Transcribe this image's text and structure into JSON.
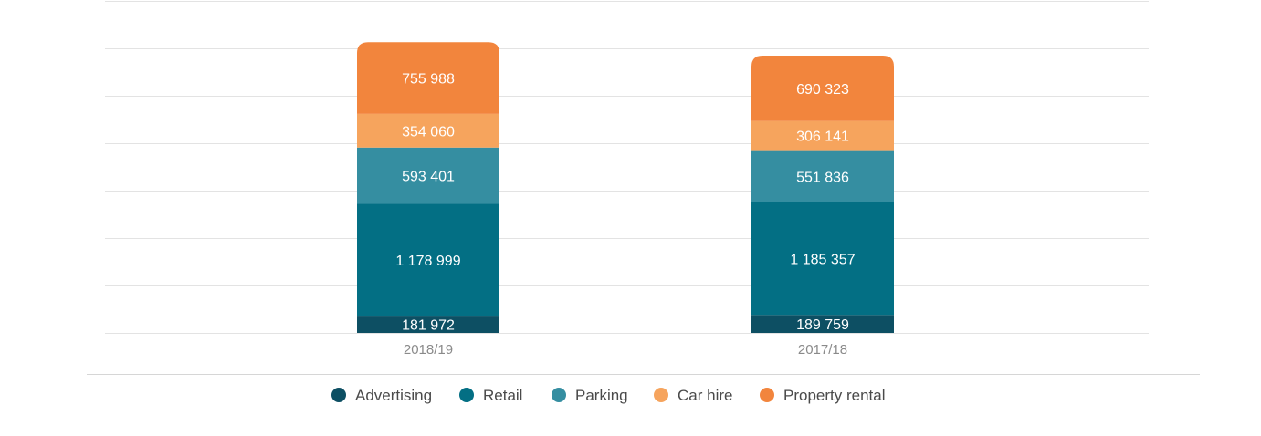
{
  "chart_data": {
    "type": "bar",
    "stacked": true,
    "title": "",
    "xlabel": "",
    "ylabel": "",
    "categories": [
      "2018/19",
      "2017/18"
    ],
    "ylim": [
      0,
      3500000
    ],
    "grid": true,
    "legend_position": "bottom",
    "series": [
      {
        "name": "Advertising",
        "color": "#0d4f63",
        "values": [
          181972,
          189759
        ],
        "labels": [
          "181 972",
          "189 759"
        ]
      },
      {
        "name": "Retail",
        "color": "#036f84",
        "values": [
          1178999,
          1185357
        ],
        "labels": [
          "1 178 999",
          "1 185 357"
        ]
      },
      {
        "name": "Parking",
        "color": "#358ea1",
        "values": [
          593401,
          551836
        ],
        "labels": [
          "593 401",
          "551 836"
        ]
      },
      {
        "name": "Car hire",
        "color": "#f6a45d",
        "values": [
          354060,
          306141
        ],
        "labels": [
          "354 060",
          "306 141"
        ]
      },
      {
        "name": "Property rental",
        "color": "#f2853d",
        "values": [
          755988,
          690323
        ],
        "labels": [
          "755 988",
          "690 323"
        ]
      }
    ]
  }
}
